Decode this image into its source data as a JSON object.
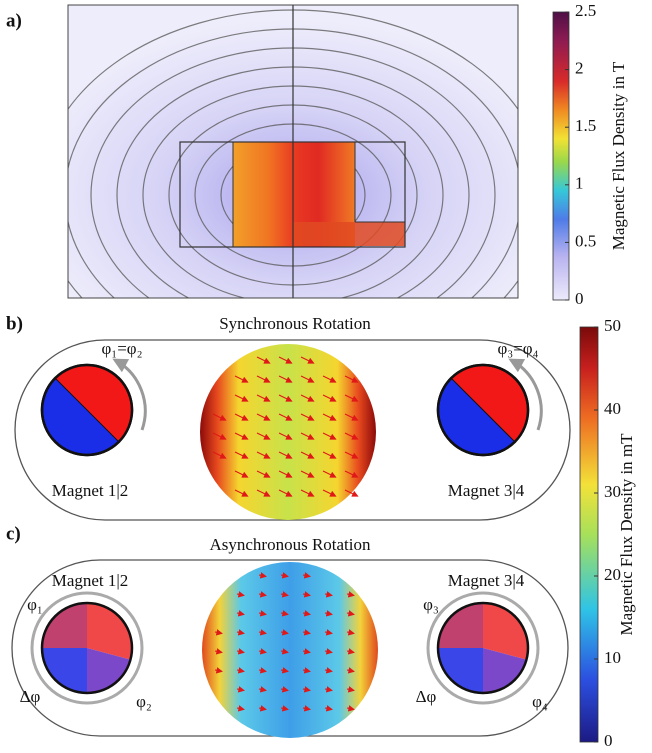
{
  "panels": [
    {
      "label": "a)"
    },
    {
      "label": "b)",
      "title": "Synchronous Rotation",
      "magnets": [
        {
          "name": "Magnet 1|2",
          "angle_label": "φ₁=φ₂"
        },
        {
          "name": "Magnet 3|4",
          "angle_label": "φ₃=φ₄"
        }
      ]
    },
    {
      "label": "c)",
      "title": "Asynchronous Rotation",
      "magnets": [
        {
          "name": "Magnet 1|2",
          "angle_labels": [
            "φ₁",
            "Δφ",
            "φ₂"
          ]
        },
        {
          "name": "Magnet 3|4",
          "angle_labels": [
            "φ₃",
            "Δφ",
            "φ₄"
          ]
        }
      ]
    }
  ],
  "colorbars": [
    {
      "label": "Magnetic Flux Density in T",
      "lim": [
        0,
        2.5
      ],
      "ticks": [
        0,
        0.5,
        1,
        1.5,
        2,
        2.5
      ]
    },
    {
      "label": "Magnetic Flux Density in mT",
      "lim": [
        0,
        50
      ],
      "ticks": [
        0,
        10,
        20,
        30,
        40,
        50
      ]
    }
  ]
}
